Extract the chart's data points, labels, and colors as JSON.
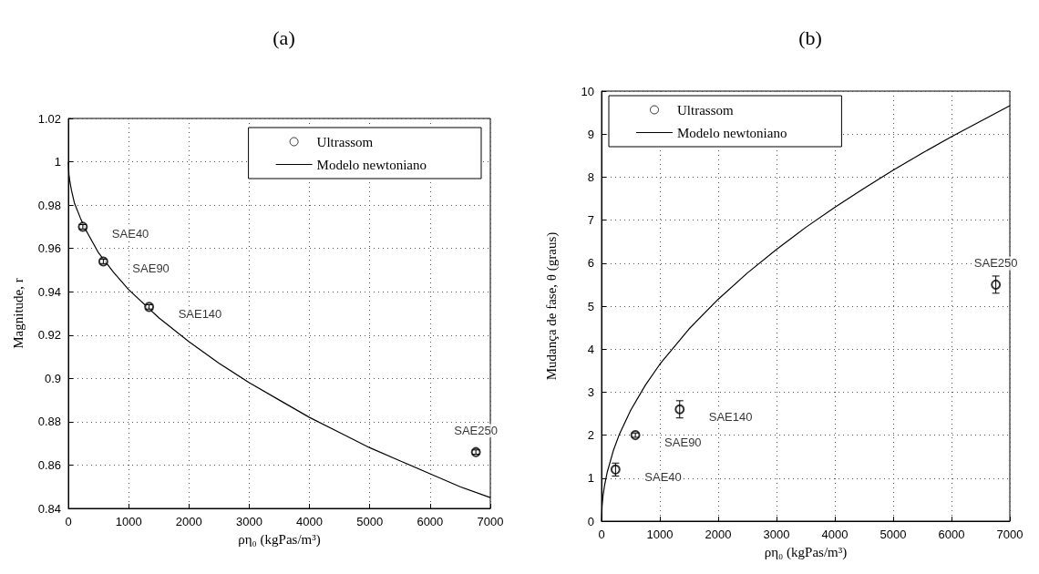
{
  "chart_data": [
    {
      "type": "scatter",
      "title": "(a)",
      "xlabel": "ρη₀ (kgPas/m³)",
      "ylabel": "Magnitude, r",
      "xlim": [
        0,
        7000
      ],
      "xticks": [
        0,
        1000,
        2000,
        3000,
        4000,
        5000,
        6000,
        7000
      ],
      "ylim": [
        0.84,
        1.02
      ],
      "yticks": [
        0.84,
        0.86,
        0.88,
        0.9,
        0.92,
        0.94,
        0.96,
        0.98,
        1,
        1.02
      ],
      "grid": true,
      "legend": "top right",
      "series": [
        {
          "name": "Ultrassom",
          "marker": "circle",
          "color": "#000000",
          "x": [
            240,
            580,
            1340,
            6760
          ],
          "values": [
            0.97,
            0.954,
            0.933,
            0.866
          ],
          "errors": [
            0.001,
            0.001,
            0.001,
            0.001
          ]
        },
        {
          "name": "Modelo newtoniano",
          "type": "line",
          "marker": "none",
          "color": "#000000",
          "x": [
            0,
            10,
            25,
            50,
            100,
            200,
            300,
            500,
            750,
            1000,
            1500,
            2000,
            2500,
            3000,
            3500,
            4000,
            4500,
            5000,
            5500,
            6000,
            6500,
            7000
          ],
          "values": [
            1.0,
            0.994,
            0.991,
            0.987,
            0.981,
            0.974,
            0.968,
            0.958,
            0.949,
            0.941,
            0.928,
            0.917,
            0.907,
            0.898,
            0.89,
            0.882,
            0.875,
            0.868,
            0.862,
            0.856,
            0.85,
            0.845
          ]
        }
      ],
      "annotations": [
        {
          "text": "SAE40",
          "x": 240,
          "y": 0.97
        },
        {
          "text": "SAE90",
          "x": 580,
          "y": 0.954
        },
        {
          "text": "SAE140",
          "x": 1340,
          "y": 0.933
        },
        {
          "text": "SAE250",
          "x": 6760,
          "y": 0.866
        }
      ]
    },
    {
      "type": "scatter",
      "title": "(b)",
      "xlabel": "ρη₀ (kgPas/m³)",
      "ylabel": "Mudança de fase, θ (graus)",
      "xlim": [
        0,
        7000
      ],
      "xticks": [
        0,
        1000,
        2000,
        3000,
        4000,
        5000,
        6000,
        7000
      ],
      "ylim": [
        0,
        10
      ],
      "yticks": [
        0,
        1,
        2,
        3,
        4,
        5,
        6,
        7,
        8,
        9,
        10
      ],
      "grid": true,
      "legend": "top left",
      "series": [
        {
          "name": "Ultrassom",
          "marker": "circle",
          "color": "#000000",
          "x": [
            240,
            580,
            1340,
            6760
          ],
          "values": [
            1.2,
            2.0,
            2.6,
            5.5
          ],
          "errors": [
            0.15,
            0.05,
            0.2,
            0.2
          ]
        },
        {
          "name": "Modelo newtoniano",
          "type": "line",
          "marker": "none",
          "color": "#000000",
          "x": [
            0,
            10,
            25,
            50,
            100,
            200,
            300,
            500,
            750,
            1000,
            1500,
            2000,
            2500,
            3000,
            3500,
            4000,
            4500,
            5000,
            5500,
            6000,
            6500,
            7000
          ],
          "values": [
            0,
            0.36,
            0.58,
            0.82,
            1.15,
            1.63,
            2.0,
            2.58,
            3.16,
            3.65,
            4.47,
            5.16,
            5.77,
            6.32,
            6.83,
            7.3,
            7.74,
            8.16,
            8.56,
            8.94,
            9.3,
            9.66
          ]
        }
      ],
      "annotations": [
        {
          "text": "SAE40",
          "x": 240,
          "y": 1.2
        },
        {
          "text": "SAE90",
          "x": 580,
          "y": 2.0
        },
        {
          "text": "SAE140",
          "x": 1340,
          "y": 2.6
        },
        {
          "text": "SAE250",
          "x": 6760,
          "y": 5.5
        }
      ]
    }
  ]
}
